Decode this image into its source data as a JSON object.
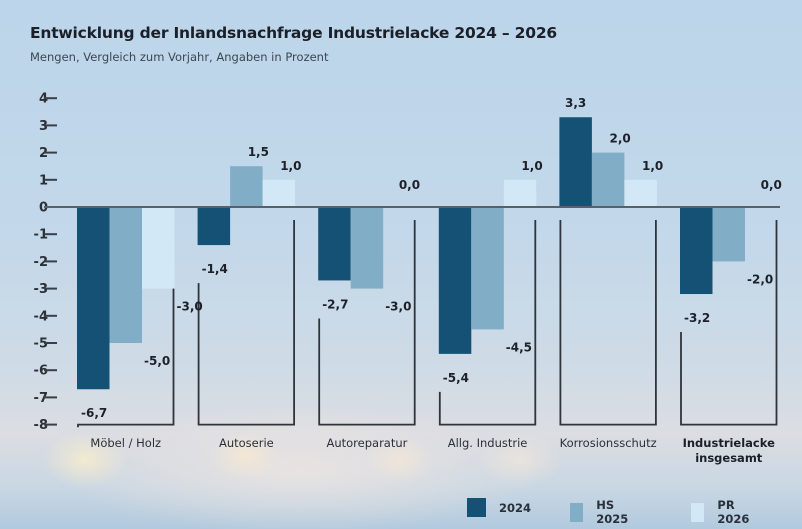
{
  "chart_data": {
    "type": "bar",
    "title": "Entwicklung der Inlandsnachfrage Industrielacke 2024 – 2026",
    "subtitle": "Mengen, Vergleich zum Vorjahr, Angaben in Prozent",
    "xlabel": "",
    "ylabel": "",
    "ylim": [
      -8,
      4
    ],
    "yticks": [
      4,
      3,
      2,
      1,
      0,
      -1,
      -2,
      -3,
      -4,
      -5,
      -6,
      -7,
      -8
    ],
    "ytick_labels": [
      "4",
      "3",
      "2",
      "1",
      "0",
      "-1",
      "-2",
      "-3",
      "-4",
      "-5",
      "-6",
      "-7",
      "-8"
    ],
    "categories": [
      "Möbel / Holz",
      "Autoserie",
      "Autoreparatur",
      "Allg. Industrie",
      "Korrosionsschutz",
      "Industrielacke insgesamt"
    ],
    "category_bold": [
      false,
      false,
      false,
      false,
      false,
      true
    ],
    "series": [
      {
        "name": "2024",
        "color": "#145174",
        "values": [
          -6.7,
          -1.4,
          -2.7,
          -5.4,
          3.3,
          -3.2
        ],
        "labels": [
          "-6,7",
          "-1,4",
          "-2,7",
          "-5,4",
          "3,3",
          "-3,2"
        ]
      },
      {
        "name": "HS 2025",
        "color": "#82adc7",
        "values": [
          -5.0,
          1.5,
          -3.0,
          -4.5,
          2.0,
          -2.0
        ],
        "labels": [
          "-5,0",
          "1,5",
          "-3,0",
          "-4,5",
          "2,0",
          "-2,0"
        ]
      },
      {
        "name": "PR 2026",
        "color": "#d2e8f6",
        "values": [
          -3.0,
          1.0,
          0.0,
          1.0,
          1.0,
          0.0
        ],
        "labels": [
          "-3,0",
          "1,0",
          "0,0",
          "1,0",
          "1,0",
          "0,0"
        ]
      }
    ],
    "grid": false,
    "legend_position": "bottom-right"
  },
  "header": {
    "title": "Entwicklung der Inlandsnachfrage Industrielacke 2024 – 2026",
    "subtitle": "Mengen, Vergleich zum Vorjahr, Angaben in Prozent"
  },
  "legend": [
    {
      "label": "2024",
      "color": "#145174"
    },
    {
      "label": "HS 2025",
      "color": "#82adc7"
    },
    {
      "label": "PR 2026",
      "color": "#d2e8f6"
    }
  ]
}
